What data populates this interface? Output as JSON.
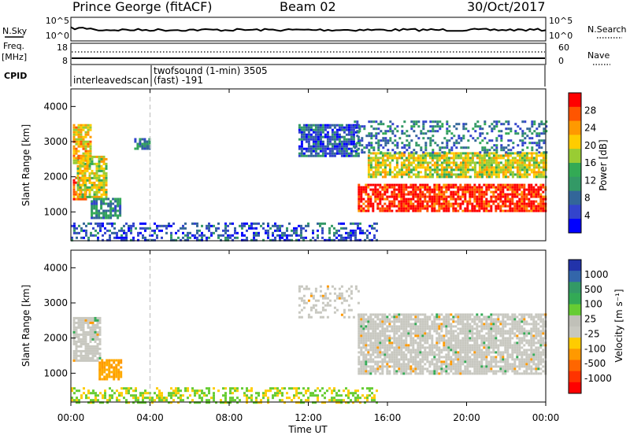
{
  "header": {
    "station": "Prince George (fitACF)",
    "beam": "Beam 02",
    "date": "30/Oct/2017"
  },
  "panels": {
    "nsky": {
      "label": "N.Sky",
      "left_ticks": [
        "10^5",
        "10^0"
      ],
      "right_ticks": [
        "10^5",
        "10^0"
      ],
      "right_label": "N.Search"
    },
    "freq": {
      "label_line1": "Freq.",
      "label_line2": "[MHz]",
      "left_ticks": [
        "18",
        "8"
      ],
      "right_ticks": [
        "60",
        "0"
      ],
      "right_label": "Nave"
    },
    "cpid": {
      "label": "CPID",
      "segments": [
        {
          "label": "interleavedscan",
          "start_hour": 0.0,
          "end_hour": 4.0
        },
        {
          "label": "twofsound (1-min) 3505",
          "sublabel": "(fast) -191",
          "start_hour": 4.0,
          "end_hour": 24.0
        }
      ]
    }
  },
  "colorbars": {
    "power": {
      "title": "Power [dB]",
      "ticks": [
        "28",
        "24",
        "20",
        "16",
        "12",
        "8",
        "4"
      ],
      "colors": [
        "#ff0000",
        "#ff5500",
        "#ff9900",
        "#ffcc00",
        "#99cc33",
        "#33aa55",
        "#339966",
        "#336699",
        "#3344cc",
        "#0000ff"
      ]
    },
    "velocity": {
      "title": "Velocity [m s⁻¹]",
      "ticks": [
        "1000",
        "500",
        "100",
        "25",
        "-25",
        "-100",
        "-500",
        "-1000"
      ],
      "colors": [
        "#2233aa",
        "#3366aa",
        "#339966",
        "#33aa55",
        "#66cc33",
        "#c0c0b8",
        "#c8c8c0",
        "#ffcc00",
        "#ff9900",
        "#ff6600",
        "#ff3300",
        "#ff0000"
      ]
    }
  },
  "chart_data": {
    "type": "heatmap",
    "x": {
      "label": "Time UT",
      "ticks": [
        "00:00",
        "04:00",
        "08:00",
        "12:00",
        "16:00",
        "20:00",
        "00:00"
      ],
      "range_hours": [
        0,
        24
      ]
    },
    "y": {
      "label": "Slant Range [km]",
      "ticks": [
        1000,
        2000,
        3000,
        4000
      ],
      "range_km": [
        180,
        4500
      ]
    },
    "cpid_boundary_hour": 4.0,
    "power_regions": [
      {
        "name": "early-echo-a",
        "t0": 0.1,
        "t1": 0.8,
        "r0": 1350,
        "r1": 2000,
        "power_db": 24
      },
      {
        "name": "early-echo-b",
        "t0": 0.3,
        "t1": 1.8,
        "r0": 1400,
        "r1": 2600,
        "power_db": 18
      },
      {
        "name": "early-echo-c",
        "t0": 0.1,
        "t1": 1.0,
        "r0": 2400,
        "r1": 3500,
        "power_db": 20
      },
      {
        "name": "early-echo-d",
        "t0": 1.0,
        "t1": 2.5,
        "r0": 800,
        "r1": 1400,
        "power_db": 10
      },
      {
        "name": "echo-3h",
        "t0": 3.2,
        "t1": 4.0,
        "r0": 2800,
        "r1": 3100,
        "power_db": 8
      },
      {
        "name": "ground-scatter",
        "t0": 0.0,
        "t1": 15.5,
        "r0": 180,
        "r1": 700,
        "power_db": 6
      },
      {
        "name": "rising-patch",
        "t0": 11.5,
        "t1": 14.5,
        "r0": 2600,
        "r1": 3500,
        "power_db": 6
      },
      {
        "name": "main-band",
        "t0": 14.5,
        "t1": 24.0,
        "r0": 1000,
        "r1": 1800,
        "power_db": 28
      },
      {
        "name": "upper-band",
        "t0": 15.0,
        "t1": 24.0,
        "r0": 2000,
        "r1": 2700,
        "power_db": 18
      },
      {
        "name": "top-scatter",
        "t0": 14.3,
        "t1": 24.0,
        "r0": 2700,
        "r1": 3600,
        "power_db": 8
      }
    ],
    "velocity_regions": [
      {
        "name": "early-echo-a",
        "t0": 0.1,
        "t1": 1.5,
        "r0": 1350,
        "r1": 2600,
        "velocity": 0
      },
      {
        "name": "early-echo-b",
        "t0": 1.4,
        "t1": 2.5,
        "r0": 800,
        "r1": 1400,
        "velocity": -150
      },
      {
        "name": "ground-scatter",
        "t0": 0.0,
        "t1": 15.5,
        "r0": 180,
        "r1": 600,
        "velocity": 50
      },
      {
        "name": "main-band",
        "t0": 14.5,
        "t1": 24.0,
        "r0": 1000,
        "r1": 2700,
        "velocity": 0
      },
      {
        "name": "top-scatter",
        "t0": 11.5,
        "t1": 14.5,
        "r0": 2600,
        "r1": 3500,
        "velocity": 0
      }
    ]
  }
}
